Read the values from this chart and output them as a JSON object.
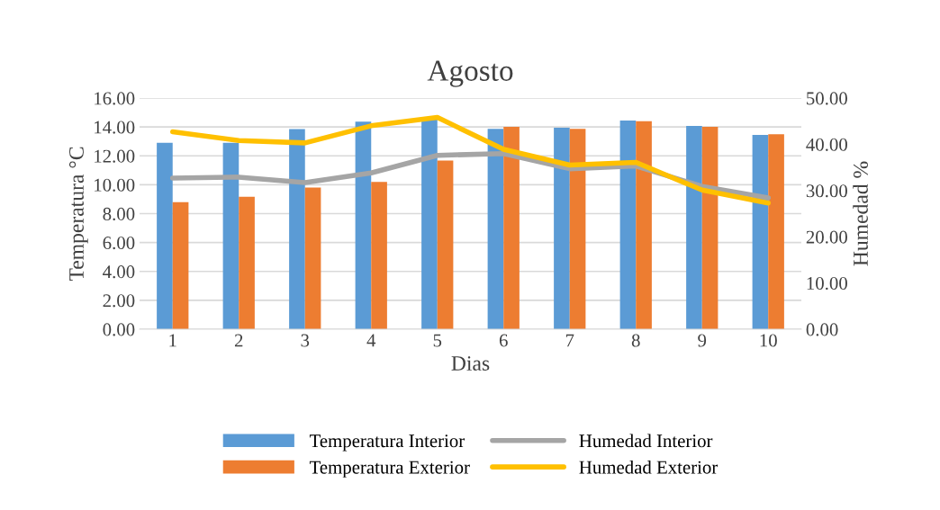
{
  "chart_data": {
    "type": "bar",
    "title": "Agosto",
    "xlabel": "Dias",
    "ylabel": "Temperatura °C",
    "y2label": "Humedad %",
    "categories": [
      "1",
      "2",
      "3",
      "4",
      "5",
      "6",
      "7",
      "8",
      "9",
      "10"
    ],
    "series": [
      {
        "name": "Temperatura Interior",
        "color": "#5b9bd5",
        "values": [
          12.9,
          12.9,
          13.85,
          14.37,
          14.5,
          13.86,
          13.95,
          14.45,
          14.07,
          13.44
        ]
      },
      {
        "name": "Temperatura Exterior",
        "color": "#ed7d31",
        "values": [
          8.8,
          9.17,
          9.8,
          10.2,
          11.67,
          14.01,
          13.86,
          14.39,
          14.01,
          13.49
        ]
      },
      {
        "name": "Humedad Interior",
        "type": "line",
        "axis": "y2",
        "color": "#a5a5a5",
        "values": [
          32.7,
          32.9,
          31.7,
          33.8,
          37.6,
          38.0,
          34.7,
          35.3,
          30.9,
          28.4
        ]
      },
      {
        "name": "Humedad Exterior",
        "type": "line",
        "axis": "y2",
        "color": "#ffc000",
        "values": [
          42.7,
          40.8,
          40.3,
          44.0,
          45.8,
          38.9,
          35.5,
          36.1,
          30.1,
          27.3
        ]
      }
    ],
    "ylim": [
      0,
      16
    ],
    "yticks": [
      {
        "value": 0,
        "label": "0.00"
      },
      {
        "value": 2,
        "label": "2.00"
      },
      {
        "value": 4,
        "label": "4.00"
      },
      {
        "value": 6,
        "label": "6.00"
      },
      {
        "value": 8,
        "label": "8.00"
      },
      {
        "value": 10,
        "label": "10.00"
      },
      {
        "value": 12,
        "label": "12.00"
      },
      {
        "value": 14,
        "label": "14.00"
      },
      {
        "value": 16,
        "label": "16.00"
      }
    ],
    "y2lim": [
      0,
      50
    ],
    "y2ticks": [
      {
        "value": 0,
        "label": "0.00"
      },
      {
        "value": 10,
        "label": "10.00"
      },
      {
        "value": 20,
        "label": "20.00"
      },
      {
        "value": 30,
        "label": "30.00"
      },
      {
        "value": 40,
        "label": "40.00"
      },
      {
        "value": 50,
        "label": "50.00"
      }
    ],
    "grid": "y",
    "legend": "bottom",
    "marker": "none",
    "line_style": "solid"
  }
}
